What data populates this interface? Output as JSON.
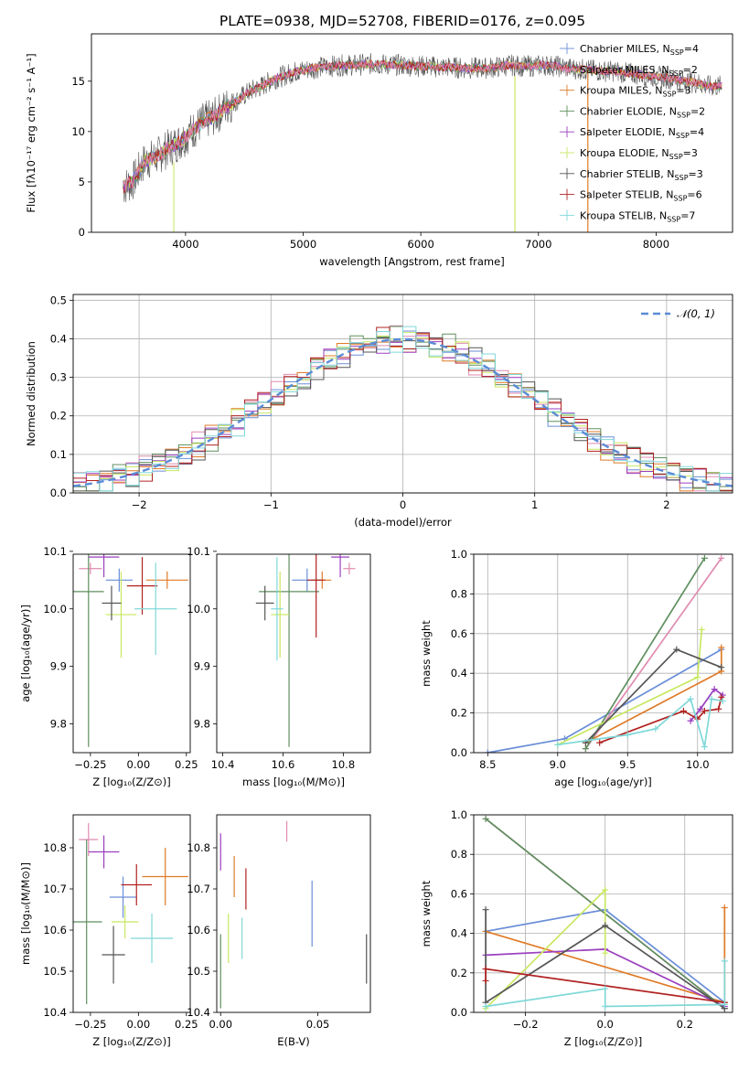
{
  "title": "PLATE=0938, MJD=52708, FIBERID=0176, z=0.095",
  "series_colors": [
    "#6a8ed8",
    "#e08bb0",
    "#e07b28",
    "#5f8f5f",
    "#9b3fbf",
    "#c8e860",
    "#555555",
    "#b22222",
    "#80d8d8"
  ],
  "chart_data": [
    {
      "id": "spectrum",
      "type": "line",
      "xlabel": "wavelength [Angstrom, rest frame]",
      "ylabel": "Flux [fλ10⁻¹⁷ erg cm⁻² s⁻¹ A⁻¹]",
      "xlim": [
        3200,
        8650
      ],
      "ylim": [
        0,
        19.7
      ],
      "xticks": [
        4000,
        5000,
        6000,
        7000,
        8000
      ],
      "yticks": [
        0,
        5,
        10,
        15
      ],
      "legend_position": "right",
      "legend": [
        {
          "label": "Chabrier MILES, N",
          "sub": "SSP",
          "n": "=4"
        },
        {
          "label": "Salpeter MILES, N",
          "sub": "SSP",
          "n": "=2"
        },
        {
          "label": "Kroupa MILES, N",
          "sub": "SSP",
          "n": "=3"
        },
        {
          "label": "Chabrier ELODIE, N",
          "sub": "SSP",
          "n": "=2"
        },
        {
          "label": "Salpeter ELODIE, N",
          "sub": "SSP",
          "n": "=4"
        },
        {
          "label": "Kroupa ELODIE, N",
          "sub": "SSP",
          "n": "=3"
        },
        {
          "label": "Chabrier STELIB, N",
          "sub": "SSP",
          "n": "=3"
        },
        {
          "label": "Salpeter STELIB, N",
          "sub": "SSP",
          "n": "=6"
        },
        {
          "label": "Kroupa STELIB, N",
          "sub": "SSP",
          "n": "=7"
        }
      ],
      "data_x": [
        3470,
        3550,
        3650,
        3750,
        3850,
        3950,
        4050,
        4150,
        4250,
        4350,
        4450,
        4550,
        4650,
        4750,
        4850,
        4950,
        5050,
        5150,
        5250,
        5350,
        5450,
        5550,
        5650,
        5750,
        5850,
        5950,
        6050,
        6150,
        6250,
        6350,
        6450,
        6550,
        6650,
        6750,
        6850,
        6950,
        7050,
        7150,
        7250,
        7350,
        7450,
        7550,
        7650,
        7750,
        7850,
        7950,
        8050,
        8150,
        8250,
        8350,
        8450
      ],
      "data_y": [
        4.5,
        5.0,
        7.0,
        7.5,
        8.3,
        9.0,
        10.0,
        11.0,
        11.5,
        12.5,
        13.2,
        14.0,
        14.5,
        15.2,
        15.6,
        16.0,
        16.2,
        16.4,
        16.5,
        16.6,
        16.6,
        16.7,
        16.7,
        16.6,
        16.6,
        16.5,
        16.5,
        16.4,
        16.4,
        16.3,
        16.3,
        16.3,
        16.4,
        16.6,
        16.5,
        16.5,
        16.6,
        16.5,
        16.3,
        16.2,
        16.1,
        16.0,
        16.0,
        15.8,
        15.7,
        15.5,
        15.4,
        15.2,
        15.0,
        14.8,
        14.5
      ]
    },
    {
      "id": "residuals",
      "type": "histogram",
      "xlabel": "(data-model)/error",
      "ylabel": "Normed distribution",
      "xlim": [
        -2.5,
        2.5
      ],
      "ylim": [
        0,
        0.515
      ],
      "xticks": [
        -2,
        -1,
        0,
        1,
        2
      ],
      "yticks": [
        0.0,
        0.1,
        0.2,
        0.3,
        0.4,
        0.5
      ],
      "legend_position": "top-right",
      "grid": true,
      "reference_curve_label": "𝒩(0, 1)",
      "bin_width": 0.1
    },
    {
      "id": "age-vs-z",
      "type": "scatter",
      "xlabel": "Z [log₁₀(Z/Z⊙)]",
      "ylabel": "age  [log₁₀(age/yr)]",
      "xlim": [
        -0.34,
        0.27
      ],
      "ylim": [
        9.75,
        10.095
      ],
      "xticks": [
        -0.25,
        0.0,
        0.25
      ],
      "yticks": [
        9.8,
        9.9,
        10.0,
        10.1
      ],
      "points": [
        {
          "x": -0.1,
          "y": 10.05,
          "xerr": 0.07,
          "yerr": 0.02
        },
        {
          "x": -0.25,
          "y": 10.07,
          "xerr": 0.06,
          "yerr": 0.01
        },
        {
          "x": 0.15,
          "y": 10.05,
          "xerr": 0.11,
          "yerr": 0.015
        },
        {
          "x": -0.26,
          "y": 10.03,
          "xerr": 0.08,
          "yerr": 0.27
        },
        {
          "x": -0.18,
          "y": 10.09,
          "xerr": 0.08,
          "yerr": 0.035
        },
        {
          "x": -0.09,
          "y": 9.99,
          "xerr": 0.08,
          "yerr": 0.075
        },
        {
          "x": -0.14,
          "y": 10.01,
          "xerr": 0.05,
          "yerr": 0.03
        },
        {
          "x": 0.02,
          "y": 10.04,
          "xerr": 0.08,
          "yerr": 0.05
        },
        {
          "x": 0.09,
          "y": 10.0,
          "xerr": 0.11,
          "yerr": 0.08
        }
      ]
    },
    {
      "id": "age-vs-mass",
      "type": "scatter",
      "xlabel": "mass [log₁₀(M/M⊙)]",
      "ylabel": "",
      "xlim": [
        10.38,
        10.89
      ],
      "ylim": [
        9.75,
        10.095
      ],
      "xticks": [
        10.4,
        10.6,
        10.8
      ],
      "yticks": [
        9.8,
        9.9,
        10.0,
        10.1
      ],
      "points": [
        {
          "x": 10.68,
          "y": 10.05,
          "xerr": 0.05,
          "yerr": 0.02
        },
        {
          "x": 10.82,
          "y": 10.07,
          "xerr": 0.02,
          "yerr": 0.01
        },
        {
          "x": 10.73,
          "y": 10.05,
          "xerr": 0.03,
          "yerr": 0.015
        },
        {
          "x": 10.62,
          "y": 10.03,
          "xerr": 0.1,
          "yerr": 0.27
        },
        {
          "x": 10.79,
          "y": 10.09,
          "xerr": 0.03,
          "yerr": 0.035
        },
        {
          "x": 10.59,
          "y": 9.99,
          "xerr": 0.03,
          "yerr": 0.075
        },
        {
          "x": 10.54,
          "y": 10.01,
          "xerr": 0.03,
          "yerr": 0.03
        },
        {
          "x": 10.71,
          "y": 10.05,
          "xerr": 0.03,
          "yerr": 0.1
        },
        {
          "x": 10.58,
          "y": 10.0,
          "xerr": 0.02,
          "yerr": 0.09
        }
      ]
    },
    {
      "id": "massweight-vs-age",
      "type": "line",
      "xlabel": "age  [log₁₀(age/yr)]",
      "ylabel": "mass weight",
      "xlim": [
        8.4,
        10.25
      ],
      "ylim": [
        0.0,
        1.0
      ],
      "xticks": [
        8.5,
        9.0,
        9.5,
        10.0
      ],
      "yticks": [
        0.0,
        0.2,
        0.4,
        0.6,
        0.8,
        1.0
      ],
      "grid": true,
      "series": [
        {
          "x": [
            8.5,
            9.05,
            10.17
          ],
          "y": [
            0.0,
            0.07,
            0.52
          ]
        },
        {
          "x": [
            9.2,
            10.17
          ],
          "y": [
            0.02,
            0.98
          ]
        },
        {
          "x": [
            9.2,
            10.17,
            10.17
          ],
          "y": [
            0.05,
            0.41,
            0.53
          ]
        },
        {
          "x": [
            9.2,
            10.05
          ],
          "y": [
            0.02,
            0.98
          ]
        },
        {
          "x": [
            9.95,
            10.02,
            10.12,
            10.18
          ],
          "y": [
            0.16,
            0.22,
            0.32,
            0.29
          ]
        },
        {
          "x": [
            9.0,
            10.0,
            10.03
          ],
          "y": [
            0.04,
            0.38,
            0.62
          ]
        },
        {
          "x": [
            9.2,
            9.85,
            10.17
          ],
          "y": [
            0.05,
            0.52,
            0.43
          ]
        },
        {
          "x": [
            9.3,
            9.9,
            10.0,
            10.05,
            10.15,
            10.17
          ],
          "y": [
            0.05,
            0.21,
            0.17,
            0.21,
            0.22,
            0.28
          ]
        },
        {
          "x": [
            9.0,
            9.5,
            9.7,
            9.95,
            10.05,
            10.1,
            10.18
          ],
          "y": [
            0.04,
            0.09,
            0.12,
            0.27,
            0.03,
            0.27,
            0.26
          ]
        }
      ]
    },
    {
      "id": "mass-vs-z",
      "type": "scatter",
      "xlabel": "Z [log₁₀(Z/Z⊙)]",
      "ylabel": "mass [log₁₀(M/M⊙)]",
      "xlim": [
        -0.34,
        0.27
      ],
      "ylim": [
        10.4,
        10.88
      ],
      "xticks": [
        -0.25,
        0.0,
        0.25
      ],
      "yticks": [
        10.4,
        10.5,
        10.6,
        10.7,
        10.8
      ],
      "points": [
        {
          "x": -0.08,
          "y": 10.68,
          "xerr": 0.07,
          "yerr": 0.05
        },
        {
          "x": -0.26,
          "y": 10.82,
          "xerr": 0.05,
          "yerr": 0.04
        },
        {
          "x": 0.14,
          "y": 10.73,
          "xerr": 0.12,
          "yerr": 0.07
        },
        {
          "x": -0.27,
          "y": 10.62,
          "xerr": 0.08,
          "yerr": 0.2
        },
        {
          "x": -0.18,
          "y": 10.79,
          "xerr": 0.08,
          "yerr": 0.04
        },
        {
          "x": -0.07,
          "y": 10.62,
          "xerr": 0.07,
          "yerr": 0.04
        },
        {
          "x": -0.13,
          "y": 10.54,
          "xerr": 0.06,
          "yerr": 0.07
        },
        {
          "x": -0.01,
          "y": 10.71,
          "xerr": 0.08,
          "yerr": 0.05
        },
        {
          "x": 0.07,
          "y": 10.58,
          "xerr": 0.11,
          "yerr": 0.06
        }
      ]
    },
    {
      "id": "mass-vs-ebv",
      "type": "scatter",
      "xlabel": "E(B-V)",
      "ylabel": "",
      "xlim": [
        -0.002,
        0.077
      ],
      "ylim": [
        10.4,
        10.88
      ],
      "xticks": [
        0.0,
        0.05
      ],
      "yticks": [
        10.4,
        10.5,
        10.6,
        10.7,
        10.8
      ],
      "points": [
        {
          "x": 0.047,
          "y": 10.64,
          "xerr": 0,
          "yerr": 0.08
        },
        {
          "x": 0.034,
          "y": 10.84,
          "xerr": 0,
          "yerr": 0.025
        },
        {
          "x": 0.007,
          "y": 10.73,
          "xerr": 0,
          "yerr": 0.05
        },
        {
          "x": 0.0,
          "y": 10.5,
          "xerr": 0,
          "yerr": 0.09
        },
        {
          "x": 0.0,
          "y": 10.79,
          "xerr": 0,
          "yerr": 0.045
        },
        {
          "x": 0.004,
          "y": 10.58,
          "xerr": 0,
          "yerr": 0.06
        },
        {
          "x": 0.075,
          "y": 10.53,
          "xerr": 0,
          "yerr": 0.06
        },
        {
          "x": 0.013,
          "y": 10.7,
          "xerr": 0,
          "yerr": 0.05
        },
        {
          "x": 0.011,
          "y": 10.58,
          "xerr": 0,
          "yerr": 0.05
        }
      ]
    },
    {
      "id": "massweight-vs-z",
      "type": "line",
      "xlabel": "Z [log₁₀(Z/Z⊙)]",
      "ylabel": "mass weight",
      "xlim": [
        -0.33,
        0.32
      ],
      "ylim": [
        0.0,
        1.0
      ],
      "xticks": [
        -0.2,
        0.0,
        0.2
      ],
      "yticks": [
        0.0,
        0.2,
        0.4,
        0.6,
        0.8,
        1.0
      ],
      "grid": true,
      "series": [
        {
          "x": [
            -0.3,
            0.0,
            0.3
          ],
          "y": [
            0.41,
            0.52,
            0.05
          ]
        },
        {
          "x": [
            -0.3,
            0.3
          ],
          "y": [
            0.98,
            0.02
          ]
        },
        {
          "x": [
            -0.3,
            0.3,
            0.3
          ],
          "y": [
            0.41,
            0.05,
            0.53
          ]
        },
        {
          "x": [
            -0.3,
            0.3
          ],
          "y": [
            0.98,
            0.02
          ]
        },
        {
          "x": [
            -0.3,
            0.0,
            0.3
          ],
          "y": [
            0.29,
            0.32,
            0.03
          ]
        },
        {
          "x": [
            -0.3,
            0.0,
            0.0
          ],
          "y": [
            0.02,
            0.62,
            0.3
          ]
        },
        {
          "x": [
            -0.3,
            -0.3,
            0.0,
            0.3
          ],
          "y": [
            0.52,
            0.05,
            0.44,
            0.02
          ]
        },
        {
          "x": [
            -0.3,
            -0.3,
            0.3
          ],
          "y": [
            0.16,
            0.22,
            0.05
          ]
        },
        {
          "x": [
            -0.3,
            0.0,
            0.0,
            0.3,
            0.3
          ],
          "y": [
            0.03,
            0.12,
            0.03,
            0.04,
            0.26
          ]
        }
      ]
    }
  ]
}
